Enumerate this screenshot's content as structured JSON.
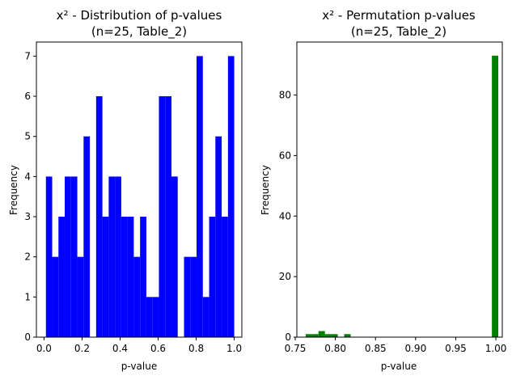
{
  "chart_data": [
    {
      "type": "bar",
      "title": "x² - Distribution of p-values\n(n=25, Table_2)",
      "xlabel": "p-value",
      "ylabel": "Frequency",
      "xlim": [
        -0.04,
        1.04
      ],
      "ylim": [
        0,
        7.35
      ],
      "xticks": [
        "0.0",
        "0.2",
        "0.4",
        "0.6",
        "0.8",
        "1.0"
      ],
      "yticks": [
        "0",
        "1",
        "2",
        "3",
        "4",
        "5",
        "6",
        "7"
      ],
      "bin_width": 0.033,
      "bin_starts": [
        0.01,
        0.043,
        0.076,
        0.109,
        0.142,
        0.175,
        0.208,
        0.241,
        0.274,
        0.307,
        0.34,
        0.373,
        0.406,
        0.439,
        0.472,
        0.505,
        0.538,
        0.571,
        0.604,
        0.637,
        0.67,
        0.703,
        0.736,
        0.769,
        0.802,
        0.835,
        0.868,
        0.901,
        0.934,
        0.967
      ],
      "values": [
        4,
        2,
        3,
        4,
        4,
        2,
        5,
        0,
        6,
        3,
        4,
        4,
        3,
        3,
        2,
        3,
        1,
        1,
        6,
        6,
        4,
        0,
        2,
        2,
        7,
        1,
        3,
        5,
        3,
        7
      ],
      "color": "#0000ff"
    },
    {
      "type": "bar",
      "title": "x² - Permutation p-values\n(n=25, Table_2)",
      "xlabel": "p-value",
      "ylabel": "Frequency",
      "xlim": [
        0.752,
        1.008
      ],
      "ylim": [
        0,
        97.5
      ],
      "xticks": [
        "0.75",
        "0.80",
        "0.85",
        "0.90",
        "0.95",
        "1.00"
      ],
      "yticks": [
        "0",
        "20",
        "40",
        "60",
        "80"
      ],
      "bin_width": 0.008,
      "bin_starts": [
        0.763,
        0.771,
        0.779,
        0.787,
        0.795,
        0.803,
        0.811,
        0.819,
        0.827,
        0.835,
        0.843,
        0.851,
        0.859,
        0.867,
        0.875,
        0.883,
        0.891,
        0.899,
        0.907,
        0.915,
        0.923,
        0.931,
        0.939,
        0.947,
        0.955,
        0.963,
        0.971,
        0.979,
        0.987,
        0.995
      ],
      "values": [
        1,
        1,
        2,
        1,
        1,
        0,
        1,
        0,
        0,
        0,
        0,
        0,
        0,
        0,
        0,
        0,
        0,
        0,
        0,
        0,
        0,
        0,
        0,
        0,
        0,
        0,
        0,
        0,
        0,
        93
      ],
      "color": "#008000"
    }
  ]
}
